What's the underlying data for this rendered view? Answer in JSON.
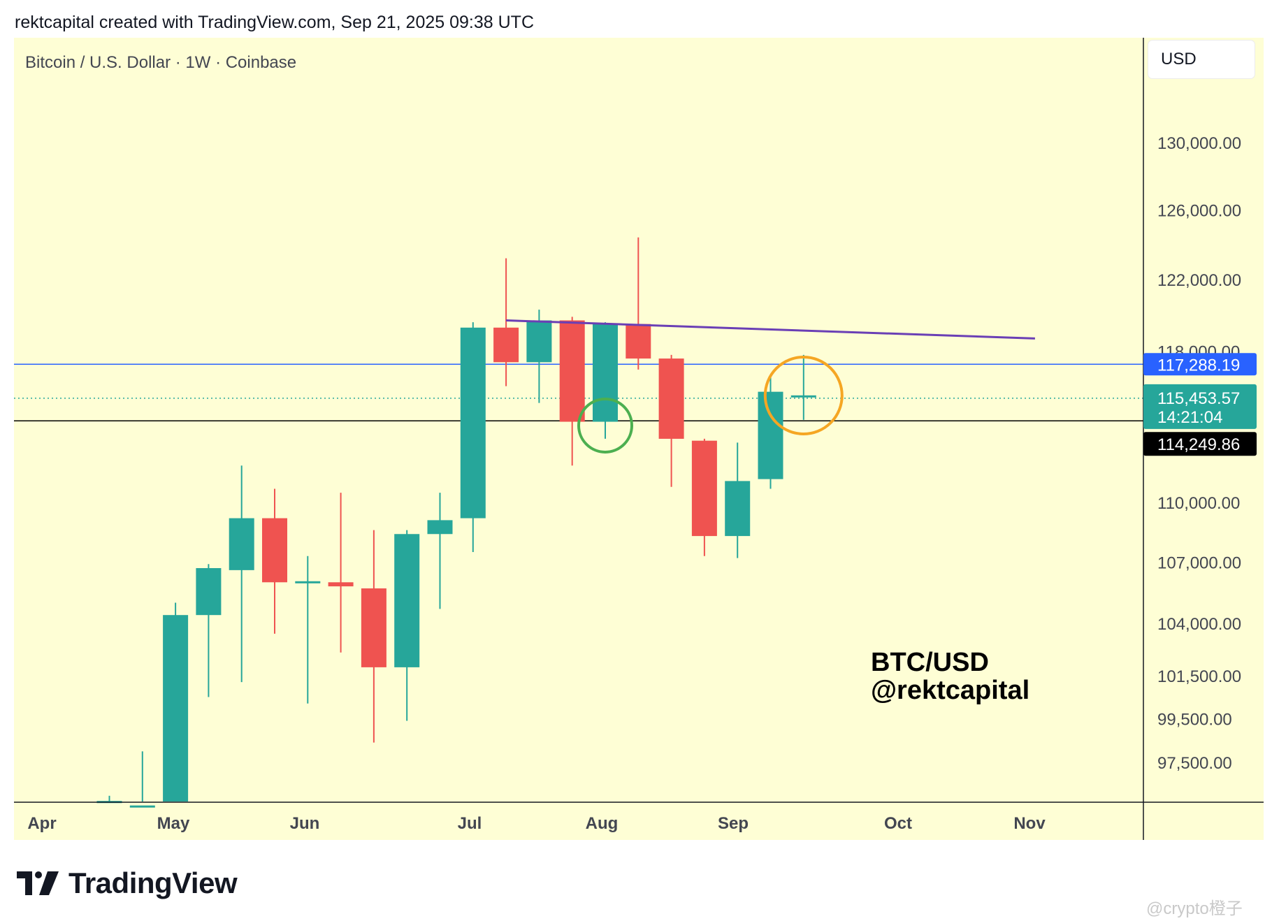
{
  "header": {
    "text": "rektcapital created with TradingView.com, Sep 21, 2025 09:38 UTC"
  },
  "pane": {
    "title": "Bitcoin / U.S. Dollar · 1W · Coinbase",
    "currency": "USD"
  },
  "annotation": {
    "line1": "BTC/USD",
    "line2": "@rektcapital"
  },
  "brand": {
    "name": "TradingView"
  },
  "watermark": {
    "text": "@crypto橙子"
  },
  "colors": {
    "background": "#fefed5",
    "up": "#26a69a",
    "down": "#ef5350",
    "resistance": "#6a3fb5",
    "blue_level": "#2962ff",
    "black_level": "#000000",
    "green_circle": "#4caf50",
    "orange_circle": "#f5a623"
  },
  "price_labels": {
    "blue": {
      "price": "117,288.19"
    },
    "current": {
      "price": "115,453.57",
      "countdown": "14:21:04"
    },
    "black": {
      "price": "114,249.86"
    }
  },
  "chart_data": {
    "type": "candlestick",
    "title": "Bitcoin / U.S. Dollar · 1W · Coinbase",
    "timeframe": "1W",
    "x_labels": [
      "Apr",
      "May",
      "Jun",
      "Jul",
      "Aug",
      "Sep",
      "Oct",
      "Nov"
    ],
    "y_ticks": [
      "130,000.00",
      "126,000.00",
      "122,000.00",
      "118,000.00",
      "110,000.00",
      "107,000.00",
      "104,000.00",
      "101,500.00",
      "99,500.00",
      "97,500.00"
    ],
    "y_tick_values": [
      130000,
      126000,
      122000,
      118000,
      110000,
      107000,
      104000,
      101500,
      99500,
      97500
    ],
    "scale": "log",
    "candles": [
      {
        "date": "2025-04-07",
        "open": 95600,
        "high": 96000,
        "low": 95300,
        "close": 95700
      },
      {
        "date": "2025-04-14",
        "open": 95200,
        "high": 98000,
        "low": 95000,
        "close": 95300
      },
      {
        "date": "2025-04-21",
        "open": 95300,
        "high": 105000,
        "low": 95000,
        "close": 104400
      },
      {
        "date": "2025-04-28",
        "open": 104400,
        "high": 106900,
        "low": 100500,
        "close": 106700
      },
      {
        "date": "2025-05-05",
        "open": 106600,
        "high": 111900,
        "low": 101200,
        "close": 109200
      },
      {
        "date": "2025-05-12",
        "open": 109200,
        "high": 110700,
        "low": 103500,
        "close": 106000
      },
      {
        "date": "2025-05-19",
        "open": 106000,
        "high": 107300,
        "low": 100200,
        "close": 106000
      },
      {
        "date": "2025-05-26",
        "open": 106000,
        "high": 110500,
        "low": 102600,
        "close": 105800
      },
      {
        "date": "2025-06-02",
        "open": 105700,
        "high": 108600,
        "low": 98400,
        "close": 101900
      },
      {
        "date": "2025-06-09",
        "open": 101900,
        "high": 108600,
        "low": 99400,
        "close": 108400
      },
      {
        "date": "2025-06-16",
        "open": 108400,
        "high": 110500,
        "low": 104700,
        "close": 109100
      },
      {
        "date": "2025-06-23",
        "open": 109200,
        "high": 119600,
        "low": 107500,
        "close": 119300
      },
      {
        "date": "2025-06-30",
        "open": 119300,
        "high": 123200,
        "low": 116100,
        "close": 117400
      },
      {
        "date": "2025-07-07",
        "open": 117400,
        "high": 120300,
        "low": 115200,
        "close": 119700
      },
      {
        "date": "2025-07-14",
        "open": 119700,
        "high": 119900,
        "low": 111900,
        "close": 114200
      },
      {
        "date": "2025-07-21",
        "open": 114200,
        "high": 119600,
        "low": 113300,
        "close": 119500
      },
      {
        "date": "2025-07-28",
        "open": 119500,
        "high": 124400,
        "low": 117000,
        "close": 117600
      },
      {
        "date": "2025-08-04",
        "open": 117600,
        "high": 117800,
        "low": 110800,
        "close": 113300
      },
      {
        "date": "2025-08-11",
        "open": 113200,
        "high": 113300,
        "low": 107300,
        "close": 108300
      },
      {
        "date": "2025-08-18",
        "open": 108300,
        "high": 113100,
        "low": 107200,
        "close": 111100
      },
      {
        "date": "2025-08-25",
        "open": 111200,
        "high": 116700,
        "low": 110700,
        "close": 115800
      },
      {
        "date": "2025-09-01",
        "open": 115500,
        "high": 117800,
        "low": 114300,
        "close": 115600
      }
    ],
    "horizontal_levels": [
      117288.19,
      115453.57,
      114249.86
    ],
    "trendline": {
      "from": {
        "date": "2025-06-30",
        "price": 119700
      },
      "to": {
        "date": "2025-10-20",
        "price": 118700
      }
    },
    "circles": [
      {
        "color": "green",
        "date": "2025-07-21",
        "price": 114000
      },
      {
        "color": "orange",
        "date": "2025-09-01",
        "price": 115600
      }
    ]
  }
}
